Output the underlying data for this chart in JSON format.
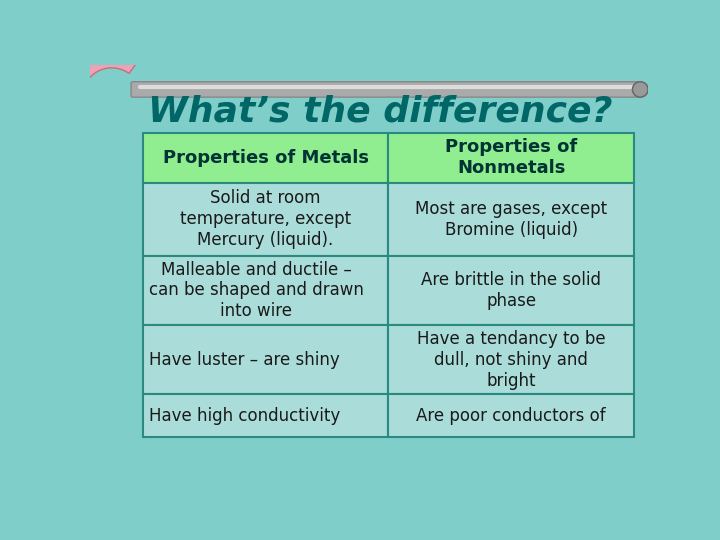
{
  "title": "What’s the difference?",
  "title_color": "#006666",
  "title_fontsize": 26,
  "bg_color": "#80CECA",
  "table_header_bg": "#90EE90",
  "table_cell_bg": "#AADDDA",
  "table_border_color": "#2A8A80",
  "headers": [
    "Properties of Metals",
    "Properties of\nNonmetals"
  ],
  "rows": [
    [
      "Solid at room\ntemperature, except\nMercury (liquid).",
      "Most are gases, except\nBromine (liquid)"
    ],
    [
      "Malleable and ductile –\ncan be shaped and drawn\ninto wire",
      "Are brittle in the solid\nphase"
    ],
    [
      "Have luster – are shiny",
      "Have a tendancy to be\ndull, not shiny and\nbright"
    ],
    [
      "Have high conductivity",
      "Are poor conductors of"
    ]
  ],
  "header_fontsize": 13,
  "cell_fontsize": 12,
  "header_text_color": "#003333",
  "cell_text_color": "#1A1A1A",
  "rod_color": "#999999",
  "rod_highlight": "#cccccc",
  "boomerang_color": "#F0A0B5",
  "boomerang_edge": "#C07080"
}
